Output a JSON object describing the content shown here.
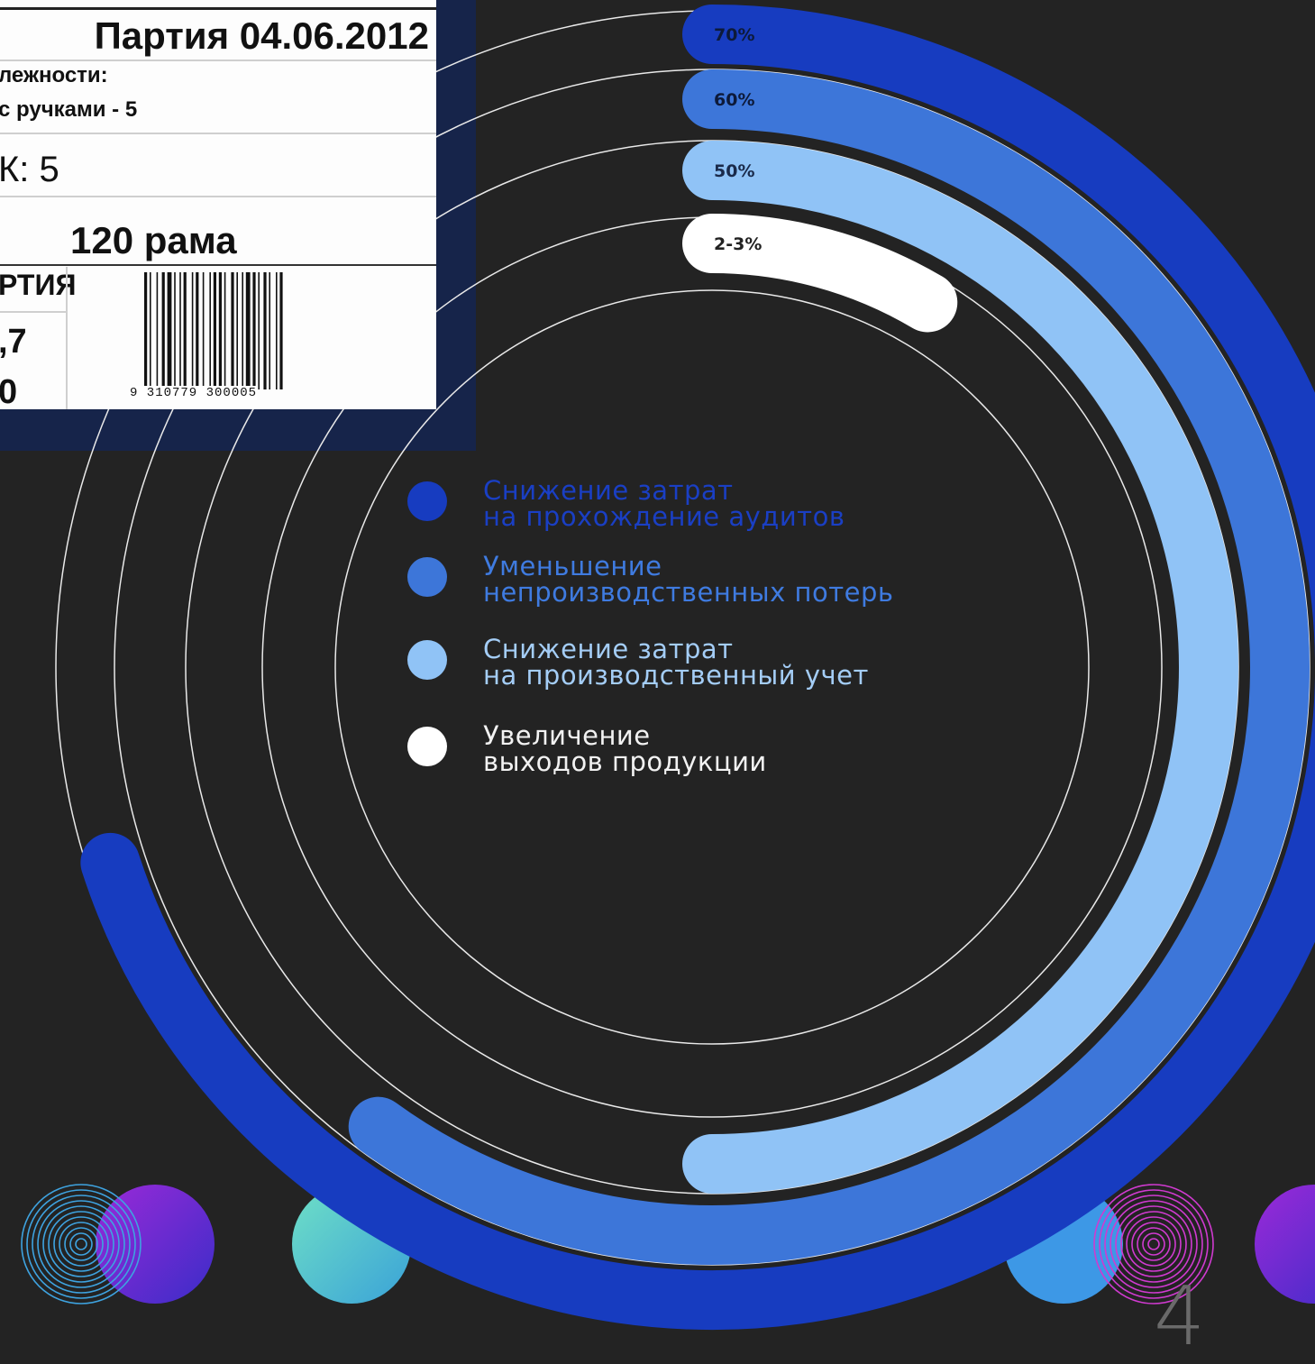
{
  "chart_data": {
    "type": "radial-bar",
    "series": [
      {
        "label": "70%",
        "value": 70,
        "color": "#173cc0",
        "legend": [
          "Снижение затрат",
          "на прохождение аудитов"
        ]
      },
      {
        "label": "60%",
        "value": 60,
        "color": "#3d76d9",
        "legend": [
          "Уменьшение",
          "непроизводственных потерь"
        ]
      },
      {
        "label": "50%",
        "value": 50,
        "color": "#90c3f6",
        "legend": [
          "Снижение затрат",
          "на производственный учет"
        ]
      },
      {
        "label": "2-3%",
        "value": 3,
        "color": "#ffffff",
        "legend": [
          "Увеличение",
          "выходов продукции"
        ]
      }
    ]
  },
  "label_card": {
    "title": "Партия 04.06.2012",
    "line1": "лежности:",
    "line2": "с ручками - 5",
    "line3": "К: 5",
    "line4": "120 рама",
    "batch": "РТИЯ",
    "value1": ",7",
    "value2": "0",
    "barcode_number": "9 310779 300005"
  },
  "page_number": "4",
  "colors": {
    "background": "#232323",
    "navy_panel": "#16244a",
    "legend_text_1": "#1a3fc4",
    "legend_text_2": "#3f7be0",
    "legend_text_3": "#a4cdf6",
    "legend_text_4": "#f2f2f2"
  }
}
